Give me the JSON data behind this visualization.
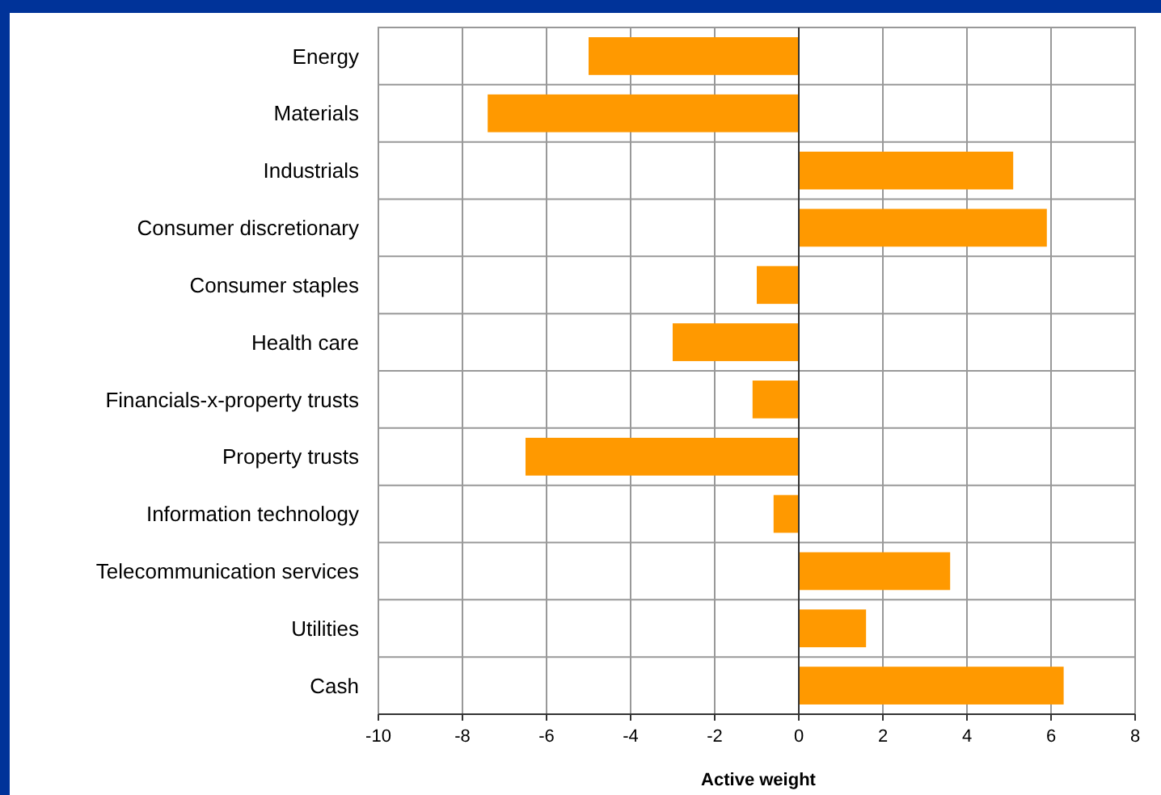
{
  "chart_data": {
    "type": "bar",
    "orientation": "horizontal",
    "xlabel": "Active weight",
    "categories": [
      "Energy",
      "Materials",
      "Industrials",
      "Consumer discretionary",
      "Consumer staples",
      "Health care",
      "Financials-x-property trusts",
      "Property trusts",
      "Information technology",
      "Telecommunication services",
      "Utilities",
      "Cash"
    ],
    "values": [
      -5.0,
      -7.4,
      5.1,
      5.9,
      -1.0,
      -3.0,
      -1.1,
      -6.5,
      -0.6,
      3.6,
      1.6,
      6.3
    ],
    "color": "#ff9900",
    "xlim": [
      -10,
      8
    ],
    "xticks": [
      -10,
      -8,
      -6,
      -4,
      -2,
      0,
      2,
      4,
      6,
      8
    ],
    "grid": true
  }
}
